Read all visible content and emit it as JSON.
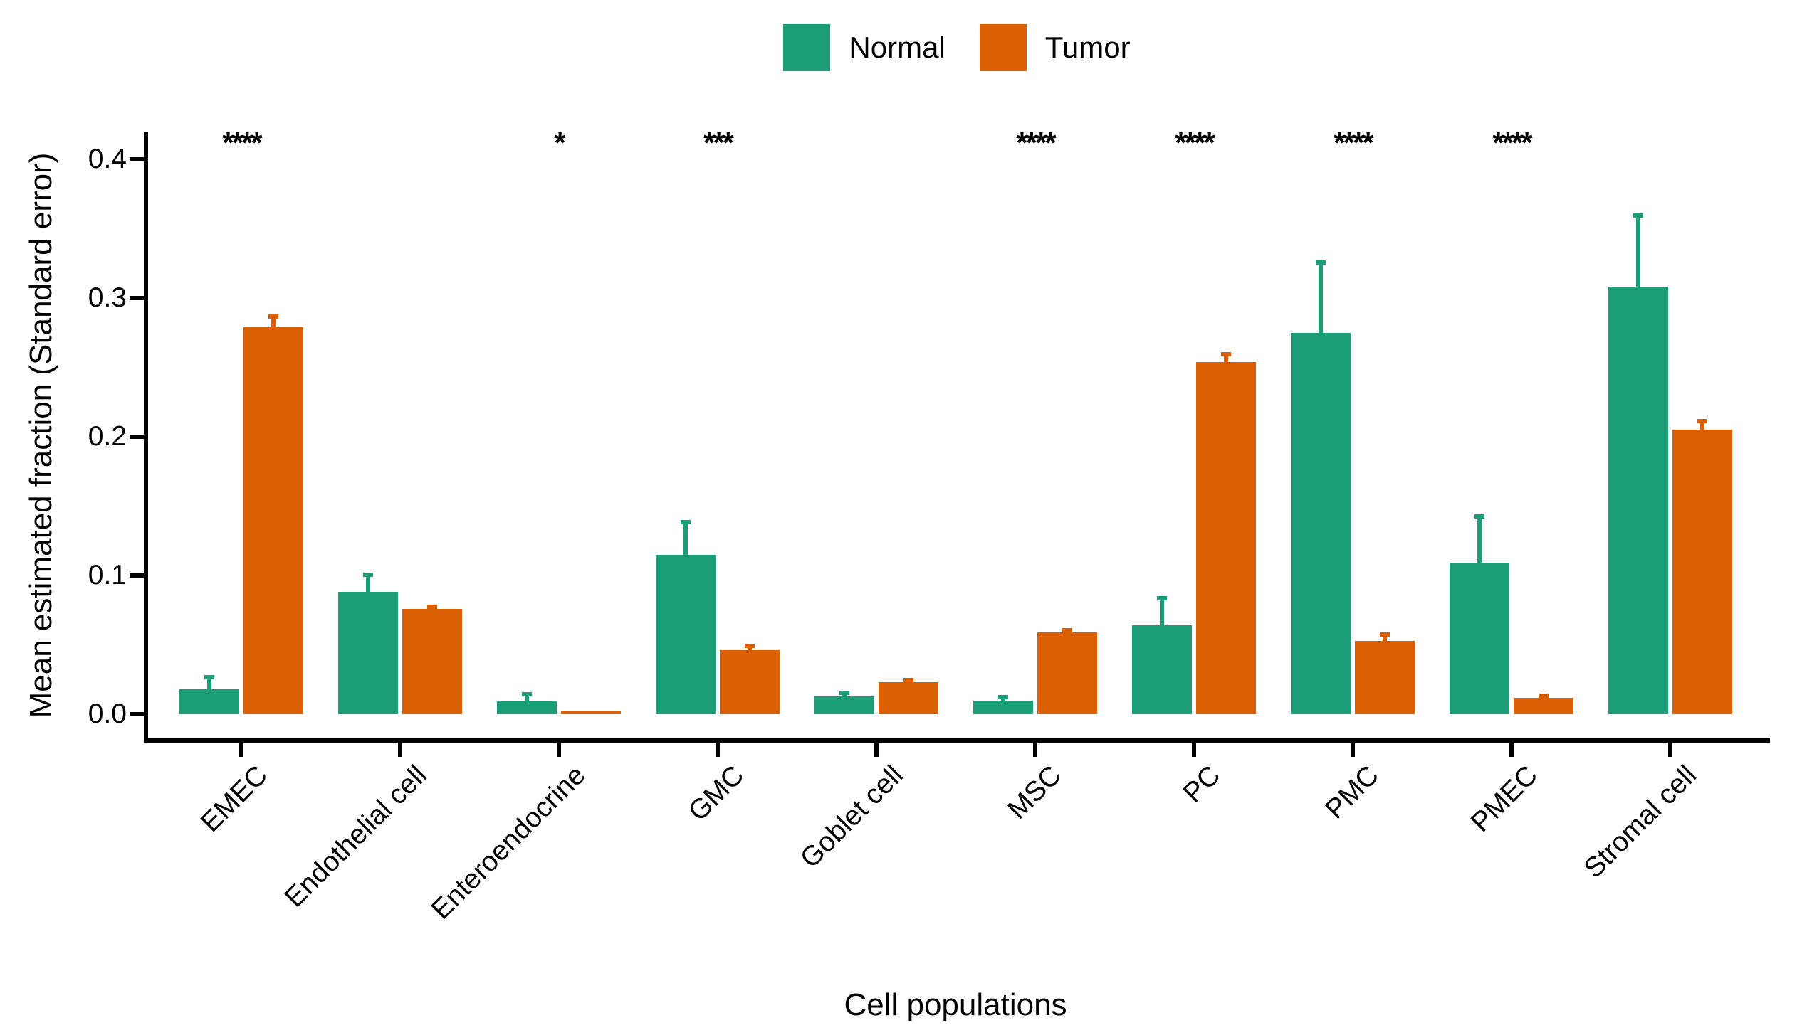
{
  "chart_data": {
    "type": "bar",
    "title": "",
    "xlabel": "Cell populations",
    "ylabel": "Mean estimated fraction (Standard error)",
    "categories": [
      "EMEC",
      "Endothelial cell",
      "Enteroendocrine",
      "GMC",
      "Goblet cell",
      "MSC",
      "PC",
      "PMC",
      "PMEC",
      "Stromal cell"
    ],
    "series": [
      {
        "name": "Normal",
        "color": "#1B9E77",
        "values": [
          0.018,
          0.088,
          0.009,
          0.115,
          0.013,
          0.01,
          0.064,
          0.275,
          0.109,
          0.308
        ],
        "stderr": [
          0.01,
          0.014,
          0.007,
          0.025,
          0.004,
          0.004,
          0.021,
          0.052,
          0.035,
          0.053
        ]
      },
      {
        "name": "Tumor",
        "color": "#D95F02",
        "values": [
          0.279,
          0.076,
          0.002,
          0.046,
          0.023,
          0.059,
          0.254,
          0.053,
          0.012,
          0.205
        ],
        "stderr": [
          0.009,
          0.003,
          0.001,
          0.005,
          0.003,
          0.003,
          0.007,
          0.006,
          0.003,
          0.008
        ]
      }
    ],
    "significance": [
      "****",
      "",
      "*",
      "***",
      "",
      "****",
      "****",
      "****",
      "****",
      ""
    ],
    "yticks": [
      0.0,
      0.1,
      0.2,
      0.3,
      0.4
    ],
    "ytick_labels": [
      "0.0",
      "0.1",
      "0.2",
      "0.3",
      "0.4"
    ],
    "ylim": [
      0,
      0.42
    ],
    "grid": "off",
    "error_bars": "mean + standard error, upper whisker with cap",
    "legend_position": "top-center"
  },
  "legend": {
    "items": [
      {
        "label": "Normal",
        "color": "#1B9E77"
      },
      {
        "label": "Tumor",
        "color": "#D95F02"
      }
    ]
  }
}
